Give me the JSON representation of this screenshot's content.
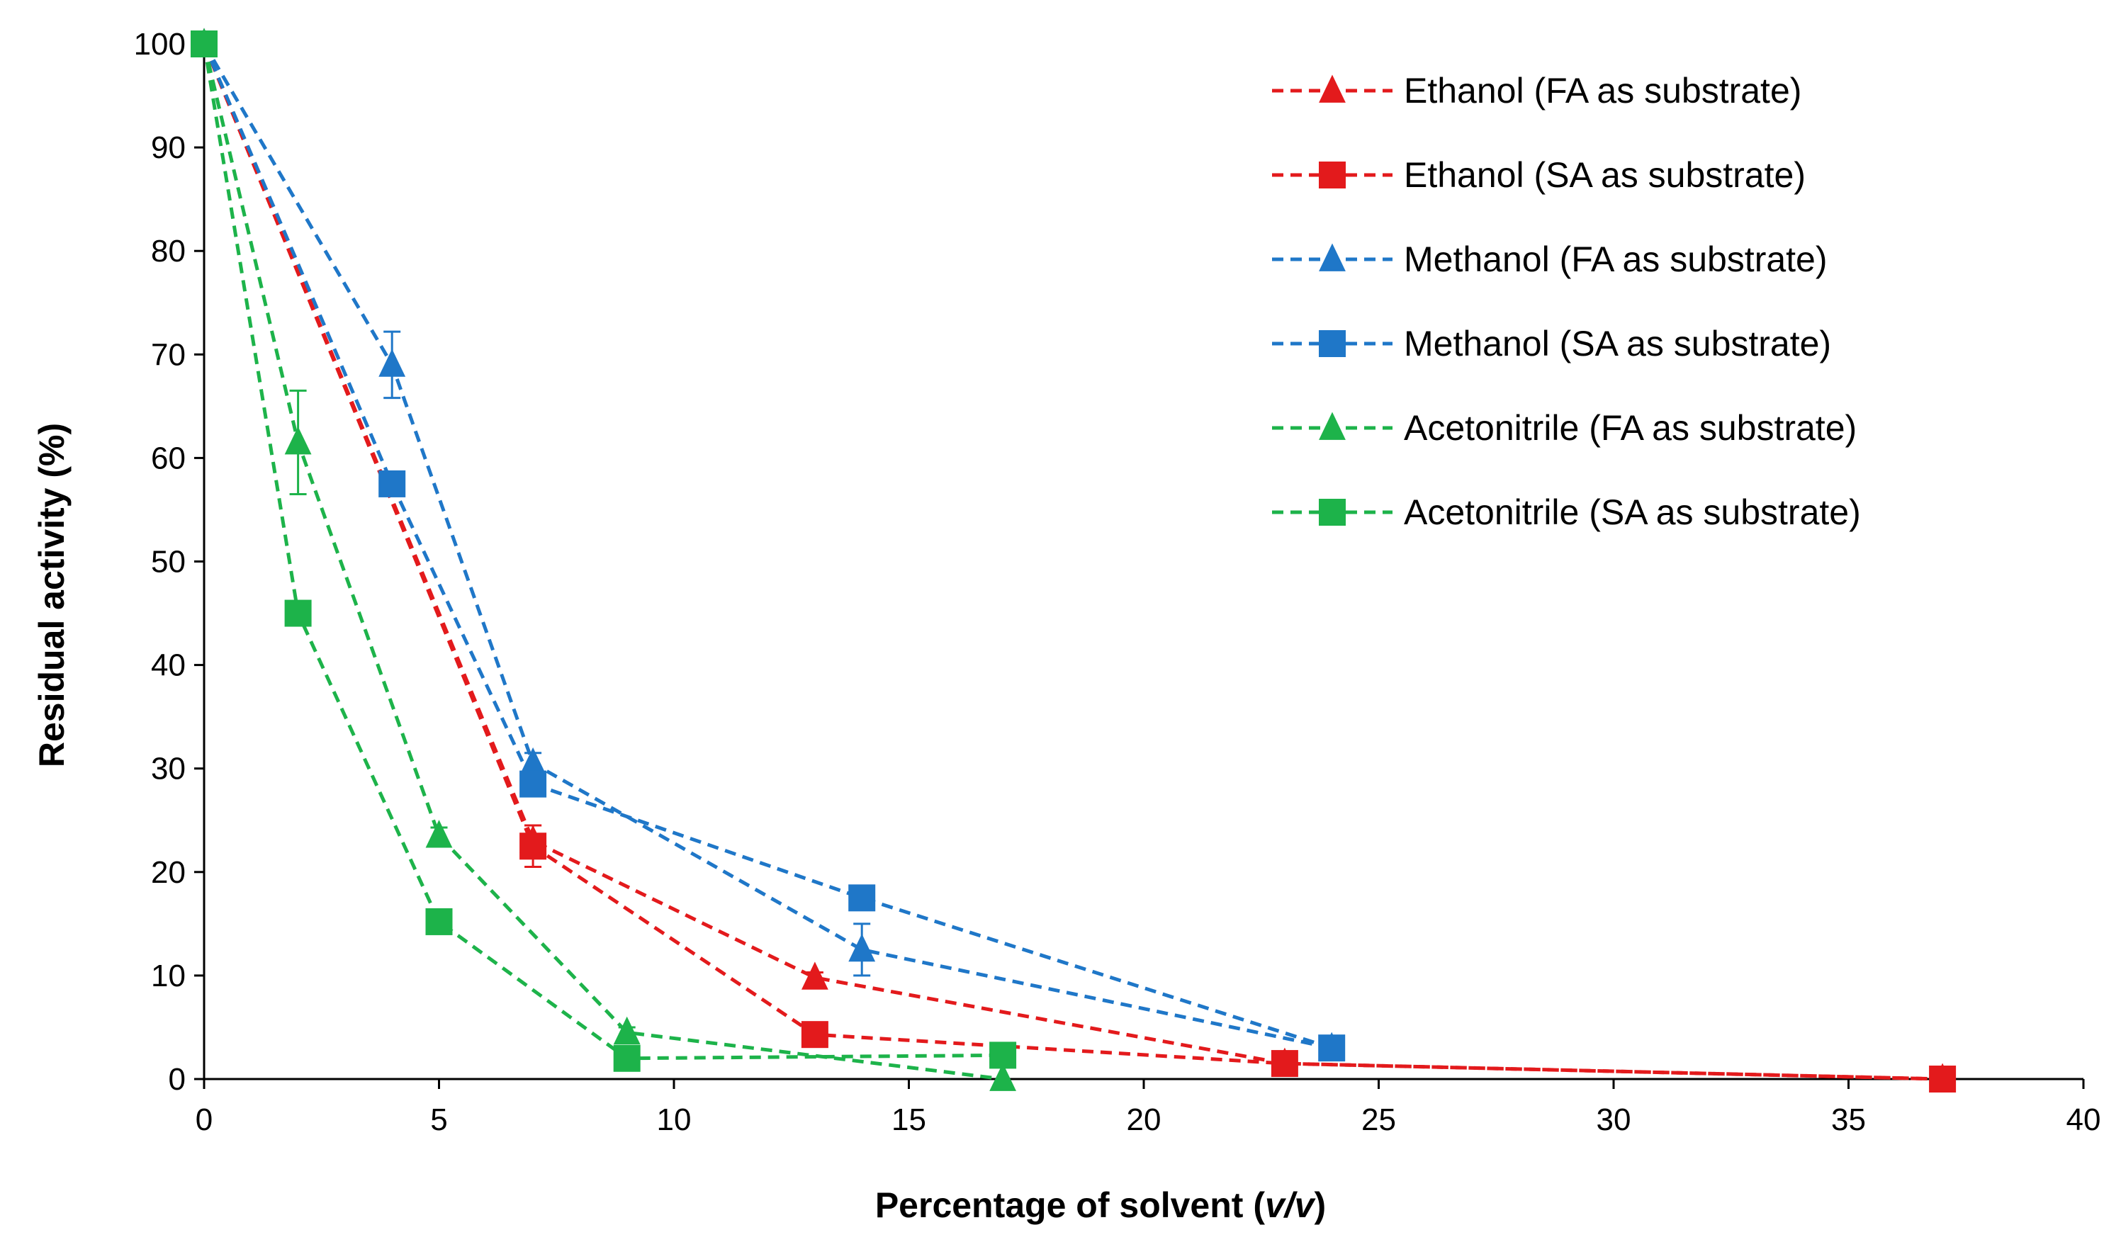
{
  "chart_data": {
    "type": "line",
    "title": "",
    "xlabel": "Percentage of  solvent  (",
    "xlabel_italic": "v/v",
    "xlabel_close": ")",
    "ylabel": "Residual activity (%)",
    "xlim": [
      0,
      40
    ],
    "ylim": [
      0,
      100
    ],
    "xticks": [
      0,
      5,
      10,
      15,
      20,
      25,
      30,
      35,
      40
    ],
    "yticks": [
      0,
      10,
      20,
      30,
      40,
      50,
      60,
      70,
      80,
      90,
      100
    ],
    "grid": false,
    "legend_position": "top-right",
    "series": [
      {
        "name": "Ethanol (FA as substrate)",
        "color": "#e31a1c",
        "marker": "triangle",
        "x": [
          0,
          7,
          13,
          23,
          37
        ],
        "y": [
          100,
          23,
          9.8,
          1.5,
          0
        ],
        "err": [
          0,
          1.5,
          0.5,
          0.3,
          0
        ]
      },
      {
        "name": "Ethanol (SA as substrate)",
        "color": "#e31a1c",
        "marker": "square",
        "x": [
          0,
          7,
          13,
          23,
          37
        ],
        "y": [
          100,
          22.5,
          4.3,
          1.5,
          0
        ],
        "err": [
          0,
          2.0,
          0.8,
          0.3,
          0
        ]
      },
      {
        "name": "Methanol (FA as substrate)",
        "color": "#1f77c8",
        "marker": "triangle",
        "x": [
          0,
          4,
          7,
          14,
          24
        ],
        "y": [
          100,
          69,
          30.5,
          12.5,
          3
        ],
        "err": [
          0,
          3.2,
          1.0,
          2.5,
          0.3
        ]
      },
      {
        "name": "Methanol (SA as substrate)",
        "color": "#1f77c8",
        "marker": "square",
        "x": [
          0,
          4,
          7,
          14,
          24
        ],
        "y": [
          100,
          57.5,
          28.5,
          17.5,
          3
        ],
        "err": [
          0,
          1.0,
          1.0,
          1.0,
          0.3
        ]
      },
      {
        "name": "Acetonitrile (FA as substrate)",
        "color": "#1db34a",
        "marker": "triangle",
        "x": [
          0,
          2,
          5,
          9,
          17
        ],
        "y": [
          100,
          61.5,
          23.5,
          4.5,
          0
        ],
        "err": [
          0,
          5.0,
          0.8,
          0.5,
          0
        ]
      },
      {
        "name": "Acetonitrile (SA as substrate)",
        "color": "#1db34a",
        "marker": "square",
        "x": [
          0,
          2,
          5,
          9,
          17
        ],
        "y": [
          100,
          45,
          15.2,
          2,
          2.3
        ],
        "err": [
          0,
          0.8,
          0.8,
          0.8,
          0.3
        ]
      }
    ]
  }
}
